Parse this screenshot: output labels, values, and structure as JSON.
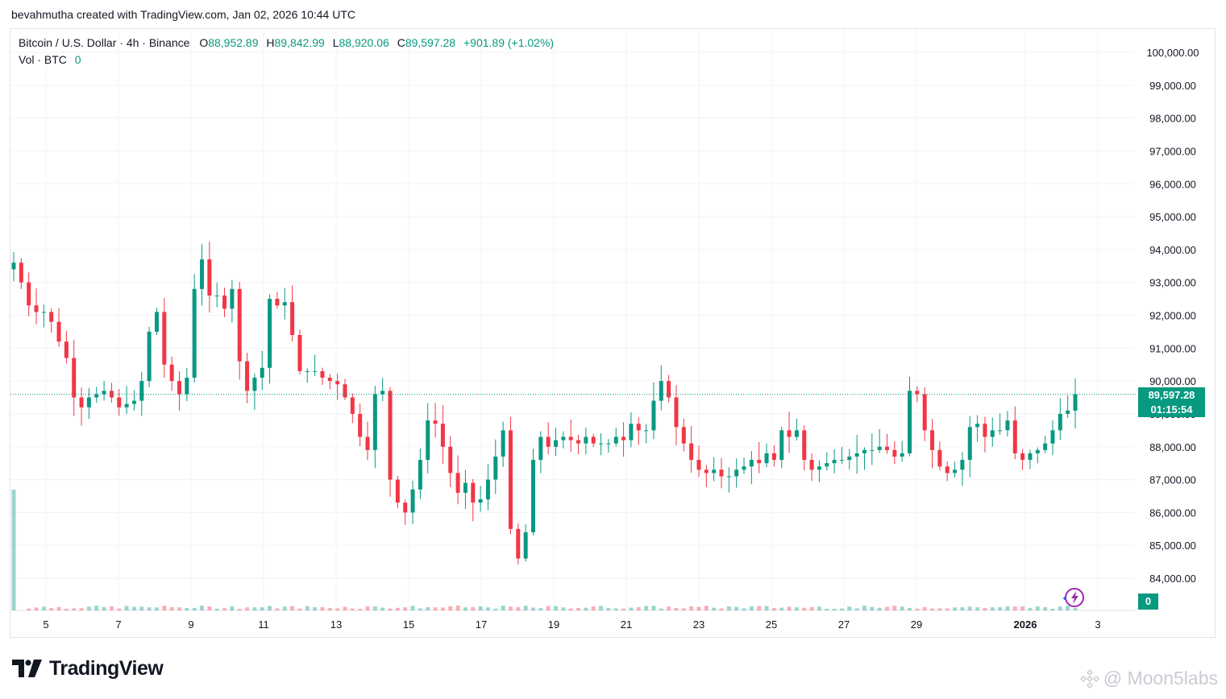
{
  "header": {
    "created_by": "bevahmutha created with TradingView.com, Jan 02, 2026 10:44 UTC"
  },
  "legend": {
    "symbol": "Bitcoin / U.S. Dollar · 4h · Binance",
    "o_label": "O",
    "o_value": "88,952.89",
    "h_label": "H",
    "h_value": "89,842.99",
    "l_label": "L",
    "l_value": "88,920.06",
    "c_label": "C",
    "c_value": "89,597.28",
    "change": "+901.89 (+1.02%)",
    "vol_label": "Vol · BTC",
    "vol_value": "0"
  },
  "badges": {
    "last_price": "89,597.28",
    "countdown": "01:15:54",
    "volume": "0"
  },
  "branding": {
    "logo_text": "TradingView",
    "watermark": "@ Moon5labs"
  },
  "colors": {
    "up": "#089981",
    "down": "#f23645",
    "grid": "#f0f3fa",
    "axis_text": "#131722"
  },
  "chart_data": {
    "type": "candlestick",
    "timeframe": "4h",
    "ylim": [
      83500,
      100500
    ],
    "y_ticks": [
      "84,000.00",
      "85,000.00",
      "86,000.00",
      "87,000.00",
      "88,000.00",
      "89,000.00",
      "90,000.00",
      "91,000.00",
      "92,000.00",
      "93,000.00",
      "94,000.00",
      "95,000.00",
      "96,000.00",
      "97,000.00",
      "98,000.00",
      "99,000.00",
      "100,000.00"
    ],
    "x_ticks": [
      "5",
      "7",
      "9",
      "11",
      "13",
      "15",
      "17",
      "19",
      "21",
      "23",
      "25",
      "27",
      "29",
      "2026",
      "3"
    ],
    "last_price": 89597.28,
    "anchors": [
      [
        0,
        93600
      ],
      [
        1,
        93000
      ],
      [
        2,
        92300
      ],
      [
        3,
        92100
      ],
      [
        4,
        92100
      ],
      [
        5,
        91800
      ],
      [
        6,
        91200
      ],
      [
        7,
        90700
      ],
      [
        8,
        89500
      ],
      [
        9,
        89200
      ],
      [
        10,
        89500
      ],
      [
        11,
        89600
      ],
      [
        12,
        89700
      ],
      [
        13,
        89500
      ],
      [
        14,
        89200
      ],
      [
        15,
        89300
      ],
      [
        16,
        89400
      ],
      [
        17,
        90000
      ],
      [
        18,
        91500
      ],
      [
        19,
        92100
      ],
      [
        20,
        90500
      ],
      [
        21,
        90000
      ],
      [
        22,
        89600
      ],
      [
        23,
        90100
      ],
      [
        24,
        92800
      ],
      [
        25,
        93700
      ],
      [
        26,
        92600
      ],
      [
        27,
        92600
      ],
      [
        28,
        92200
      ],
      [
        29,
        92800
      ],
      [
        30,
        90600
      ],
      [
        31,
        89700
      ],
      [
        32,
        90100
      ],
      [
        33,
        90400
      ],
      [
        34,
        92500
      ],
      [
        35,
        92300
      ],
      [
        36,
        92400
      ],
      [
        37,
        91400
      ],
      [
        38,
        90300
      ],
      [
        39,
        90300
      ],
      [
        40,
        90300
      ],
      [
        41,
        90100
      ],
      [
        42,
        90000
      ],
      [
        43,
        89900
      ],
      [
        44,
        89500
      ],
      [
        45,
        89000
      ],
      [
        46,
        88300
      ],
      [
        47,
        87900
      ],
      [
        48,
        89600
      ],
      [
        49,
        89700
      ],
      [
        50,
        87000
      ],
      [
        51,
        86300
      ],
      [
        52,
        86000
      ],
      [
        53,
        86700
      ],
      [
        54,
        87600
      ],
      [
        55,
        88800
      ],
      [
        56,
        88700
      ],
      [
        57,
        88000
      ],
      [
        58,
        87200
      ],
      [
        59,
        86600
      ],
      [
        60,
        86900
      ],
      [
        61,
        86300
      ],
      [
        62,
        86400
      ],
      [
        63,
        87000
      ],
      [
        64,
        87700
      ],
      [
        65,
        88500
      ],
      [
        66,
        85500
      ],
      [
        67,
        84600
      ],
      [
        68,
        85400
      ],
      [
        69,
        87600
      ],
      [
        70,
        88300
      ],
      [
        71,
        88000
      ],
      [
        72,
        88200
      ],
      [
        73,
        88300
      ],
      [
        74,
        88200
      ],
      [
        75,
        88100
      ],
      [
        76,
        88300
      ],
      [
        77,
        88100
      ],
      [
        78,
        88100
      ],
      [
        79,
        88100
      ],
      [
        80,
        88300
      ],
      [
        81,
        88200
      ],
      [
        82,
        88700
      ],
      [
        83,
        88500
      ],
      [
        84,
        88500
      ],
      [
        85,
        89400
      ],
      [
        86,
        90000
      ],
      [
        87,
        89500
      ],
      [
        88,
        88600
      ],
      [
        89,
        88100
      ],
      [
        90,
        87600
      ],
      [
        91,
        87300
      ],
      [
        92,
        87200
      ],
      [
        93,
        87300
      ],
      [
        94,
        87100
      ],
      [
        95,
        87100
      ],
      [
        96,
        87300
      ],
      [
        97,
        87400
      ],
      [
        98,
        87600
      ],
      [
        99,
        87500
      ],
      [
        100,
        87800
      ],
      [
        101,
        87600
      ],
      [
        102,
        88500
      ],
      [
        103,
        88300
      ],
      [
        104,
        88500
      ],
      [
        105,
        87600
      ],
      [
        106,
        87300
      ],
      [
        107,
        87400
      ],
      [
        108,
        87500
      ],
      [
        109,
        87600
      ],
      [
        110,
        87600
      ],
      [
        111,
        87700
      ],
      [
        112,
        87800
      ],
      [
        113,
        87900
      ],
      [
        114,
        87900
      ],
      [
        115,
        88000
      ],
      [
        116,
        87900
      ],
      [
        117,
        87700
      ],
      [
        118,
        87800
      ],
      [
        119,
        89700
      ],
      [
        120,
        89600
      ],
      [
        121,
        88500
      ],
      [
        122,
        87900
      ],
      [
        123,
        87400
      ],
      [
        124,
        87200
      ],
      [
        125,
        87300
      ],
      [
        126,
        87600
      ],
      [
        127,
        88600
      ],
      [
        128,
        88700
      ],
      [
        129,
        88300
      ],
      [
        130,
        88500
      ],
      [
        131,
        88500
      ],
      [
        132,
        88800
      ],
      [
        133,
        87800
      ],
      [
        134,
        87600
      ],
      [
        135,
        87800
      ],
      [
        136,
        87900
      ],
      [
        137,
        88100
      ],
      [
        138,
        88500
      ],
      [
        139,
        89000
      ],
      [
        140,
        89100
      ],
      [
        141,
        89597
      ]
    ],
    "volume_peak_start": 1.0,
    "volume_peak_end": 0.0
  }
}
